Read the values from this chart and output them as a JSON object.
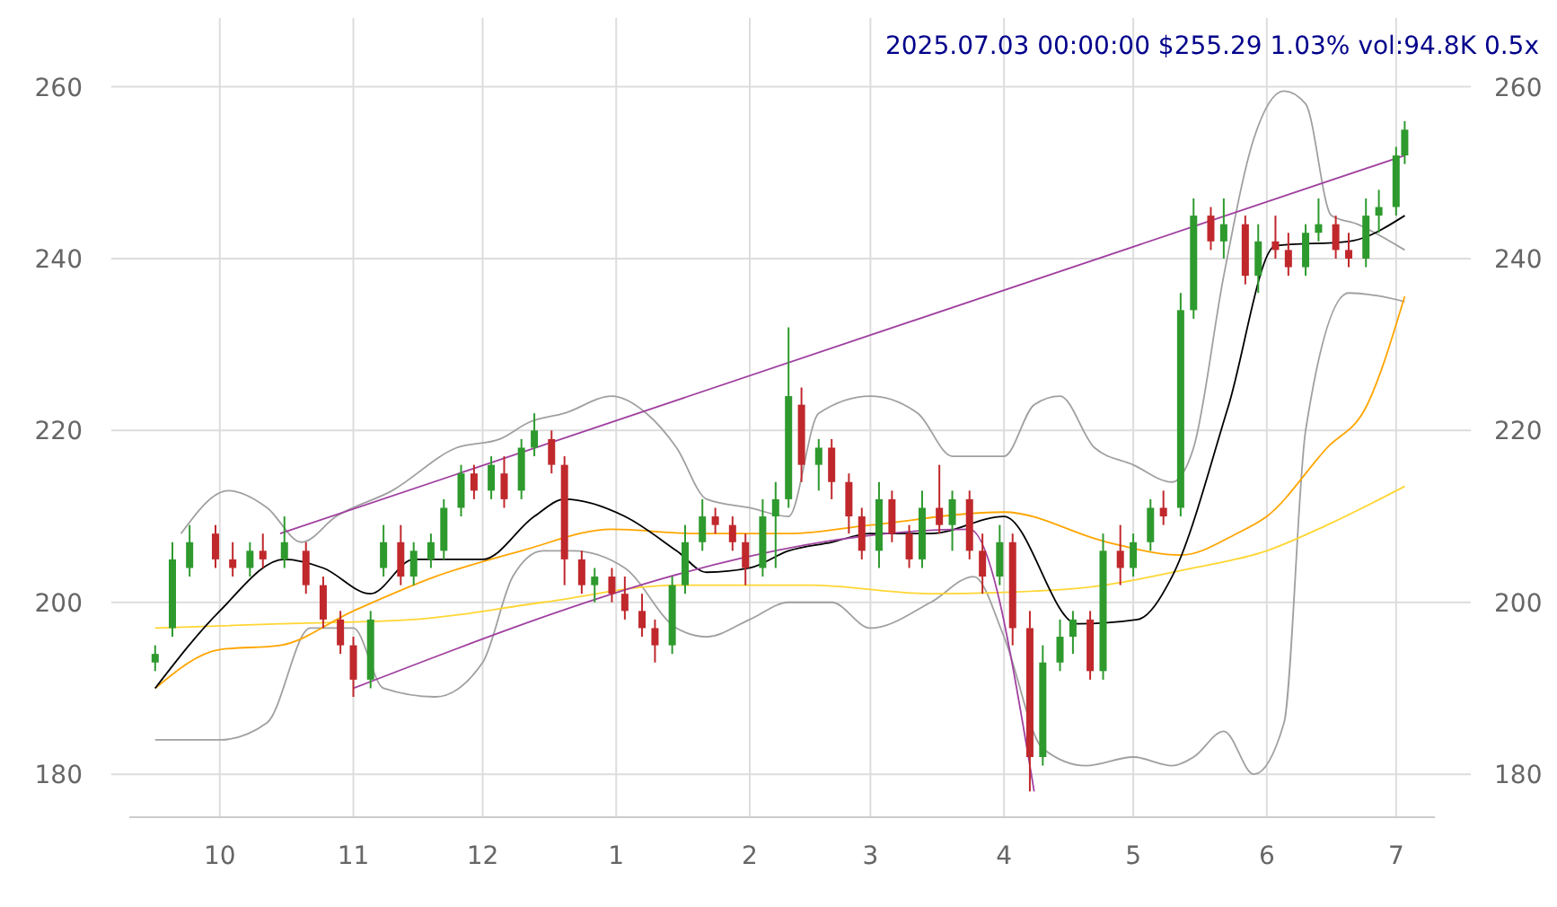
{
  "chart_data": {
    "type": "candlestick",
    "title": "2025.07.03 00:00:00 $255.29 1.03% vol:94.8K 0.5x",
    "xlim": [
      "2024-09-10",
      "2025-07-10"
    ],
    "xticks": [
      {
        "value": "2024-10-01",
        "label": "10"
      },
      {
        "value": "2024-11-01",
        "label": "11"
      },
      {
        "value": "2024-12-01",
        "label": "12"
      },
      {
        "value": "2025-01-01",
        "label": "1"
      },
      {
        "value": "2025-02-01",
        "label": "2"
      },
      {
        "value": "2025-03-01",
        "label": "3"
      },
      {
        "value": "2025-04-01",
        "label": "4"
      },
      {
        "value": "2025-05-01",
        "label": "5"
      },
      {
        "value": "2025-06-01",
        "label": "6"
      },
      {
        "value": "2025-07-01",
        "label": "7"
      }
    ],
    "ylim": [
      175,
      268
    ],
    "yticks": [
      180,
      200,
      220,
      240,
      260
    ],
    "y2lim": [
      175,
      268
    ],
    "y2ticks": [
      180,
      200,
      220,
      240,
      260
    ],
    "grid": true,
    "series": [
      {
        "type": "line",
        "color": "#a0a0a0",
        "x": [
          "2024-09-22",
          "2024-10-03",
          "2024-10-12",
          "2024-10-20",
          "2024-10-28",
          "2024-11-10",
          "2024-11-25",
          "2024-12-05",
          "2024-12-12",
          "2024-12-20",
          "2024-12-31",
          "2025-01-08",
          "2025-01-15",
          "2025-01-22",
          "2025-02-01",
          "2025-02-10",
          "2025-02-17",
          "2025-03-01",
          "2025-03-12",
          "2025-03-20",
          "2025-04-01",
          "2025-04-08",
          "2025-04-14",
          "2025-04-22",
          "2025-05-01",
          "2025-05-10",
          "2025-05-15",
          "2025-05-22",
          "2025-05-29",
          "2025-06-05",
          "2025-06-10",
          "2025-06-16",
          "2025-06-22",
          "2025-07-03"
        ],
        "values": [
          208,
          213,
          211,
          207,
          210,
          213,
          218,
          219,
          221,
          222,
          224,
          222,
          218,
          212,
          211,
          210,
          222,
          224,
          222,
          217,
          217,
          223,
          224,
          218,
          216,
          214,
          218,
          238,
          254,
          259.5,
          258,
          245,
          244,
          241
        ]
      },
      {
        "type": "line",
        "color": "#a0a0a0",
        "x": [
          "2024-09-16",
          "2024-10-01",
          "2024-10-12",
          "2024-10-22",
          "2024-11-01",
          "2024-11-08",
          "2024-11-20",
          "2024-12-01",
          "2024-12-08",
          "2024-12-15",
          "2024-12-22",
          "2025-01-03",
          "2025-01-15",
          "2025-01-22",
          "2025-02-01",
          "2025-02-10",
          "2025-02-20",
          "2025-03-01",
          "2025-03-15",
          "2025-03-25",
          "2025-04-01",
          "2025-04-10",
          "2025-04-20",
          "2025-05-01",
          "2025-05-10",
          "2025-05-15",
          "2025-05-22",
          "2025-05-29",
          "2025-06-05",
          "2025-06-10",
          "2025-06-20",
          "2025-07-03"
        ],
        "values": [
          184,
          184,
          186,
          197,
          197,
          190,
          189,
          193,
          203,
          206,
          206,
          204,
          197,
          196,
          198,
          200,
          200,
          197,
          200,
          203,
          196,
          183,
          181,
          182,
          181,
          182,
          185,
          180,
          186,
          220,
          236,
          235
        ]
      },
      {
        "type": "line",
        "color": "#ffd633",
        "x": [
          "2024-09-16",
          "2024-10-15",
          "2024-11-15",
          "2024-12-15",
          "2025-01-15",
          "2025-02-15",
          "2025-03-15",
          "2025-04-15",
          "2025-05-15",
          "2025-06-01",
          "2025-06-15",
          "2025-07-03"
        ],
        "values": [
          197,
          197.5,
          198,
          200,
          202,
          202,
          201,
          201.5,
          204,
          206,
          209,
          213.5
        ]
      },
      {
        "type": "line",
        "color": "#ffa500",
        "x": [
          "2024-09-16",
          "2024-10-01",
          "2024-10-15",
          "2024-11-01",
          "2024-11-20",
          "2024-12-10",
          "2024-12-31",
          "2025-01-20",
          "2025-02-10",
          "2025-03-01",
          "2025-04-01",
          "2025-04-25",
          "2025-05-12",
          "2025-05-25",
          "2025-06-01",
          "2025-06-15",
          "2025-06-24",
          "2025-07-03"
        ],
        "values": [
          190,
          194.5,
          195,
          199,
          203,
          206,
          208.5,
          208,
          208,
          209,
          210.5,
          207,
          205.5,
          208,
          210,
          218,
          222.7,
          235.6
        ]
      },
      {
        "type": "line",
        "color": "#000000",
        "x": [
          "2024-09-16",
          "2024-10-01",
          "2024-10-16",
          "2024-10-25",
          "2024-11-05",
          "2024-11-15",
          "2024-12-01",
          "2024-12-13",
          "2024-12-20",
          "2025-01-03",
          "2025-01-15",
          "2025-01-22",
          "2025-02-01",
          "2025-02-10",
          "2025-02-20",
          "2025-03-01",
          "2025-03-15",
          "2025-04-01",
          "2025-04-18",
          "2025-05-02",
          "2025-05-10",
          "2025-05-23",
          "2025-06-03",
          "2025-06-20",
          "2025-07-03"
        ],
        "values": [
          190,
          199,
          205,
          204,
          201,
          205,
          205,
          210,
          212,
          210,
          206,
          203.5,
          204,
          206,
          207,
          208,
          208,
          210,
          197.5,
          198,
          203,
          222.7,
          241.5,
          242,
          245
        ]
      },
      {
        "type": "line",
        "color": "#a040a0",
        "x": [
          "2024-10-15",
          "2025-07-03"
        ],
        "values": [
          208,
          252
        ]
      },
      {
        "type": "line",
        "color": "#a040a0",
        "x": [
          "2024-11-01",
          "2025-03-24",
          "2025-04-08"
        ],
        "values": [
          190,
          208.5,
          178
        ]
      },
      {
        "x": [
          "2024-09-16",
          "2024-09-20",
          "2024-09-24",
          "2024-09-30",
          "2024-10-04",
          "2024-10-08",
          "2024-10-11",
          "2024-10-16",
          "2024-10-21",
          "2024-10-25",
          "2024-10-29",
          "2024-11-01",
          "2024-11-05",
          "2024-11-08",
          "2024-11-12",
          "2024-11-15",
          "2024-11-19",
          "2024-11-22",
          "2024-11-26",
          "2024-11-29",
          "2024-12-03",
          "2024-12-06",
          "2024-12-10",
          "2024-12-13",
          "2024-12-17",
          "2024-12-20",
          "2024-12-24",
          "2024-12-27",
          "2024-12-31",
          "2025-01-03",
          "2025-01-07",
          "2025-01-10",
          "2025-01-14",
          "2025-01-17",
          "2025-01-21",
          "2025-01-24",
          "2025-01-28",
          "2025-01-31",
          "2025-02-04",
          "2025-02-07",
          "2025-02-10",
          "2025-02-13",
          "2025-02-17",
          "2025-02-20",
          "2025-02-24",
          "2025-02-27",
          "2025-03-03",
          "2025-03-06",
          "2025-03-10",
          "2025-03-13",
          "2025-03-17",
          "2025-03-20",
          "2025-03-24",
          "2025-03-27",
          "2025-03-31",
          "2025-04-03",
          "2025-04-07",
          "2025-04-10",
          "2025-04-14",
          "2025-04-17",
          "2025-04-21",
          "2025-04-24",
          "2025-04-28",
          "2025-05-01",
          "2025-05-05",
          "2025-05-08",
          "2025-05-12",
          "2025-05-15",
          "2025-05-19",
          "2025-05-22",
          "2025-05-27",
          "2025-05-30",
          "2025-06-03",
          "2025-06-06",
          "2025-06-10",
          "2025-06-13",
          "2025-06-17",
          "2025-06-20",
          "2025-06-24",
          "2025-06-27",
          "2025-07-01",
          "2025-07-03"
        ],
        "ohlc": [
          [
            193,
            195,
            192,
            194
          ],
          [
            197,
            207,
            196,
            205
          ],
          [
            204,
            209,
            203,
            207
          ],
          [
            208,
            209,
            204,
            205
          ],
          [
            205,
            207,
            203,
            204
          ],
          [
            204,
            207,
            203,
            206
          ],
          [
            206,
            208,
            204,
            205
          ],
          [
            205,
            210,
            204,
            207
          ],
          [
            206,
            207,
            201,
            202
          ],
          [
            202,
            203,
            197,
            198
          ],
          [
            198,
            199,
            194,
            195
          ],
          [
            195,
            196,
            189,
            191
          ],
          [
            191,
            199,
            190,
            198
          ],
          [
            204,
            209,
            203,
            207
          ],
          [
            207,
            209,
            202,
            203
          ],
          [
            203,
            207,
            202,
            206
          ],
          [
            205,
            208,
            204,
            207
          ],
          [
            206,
            212,
            205,
            211
          ],
          [
            211,
            216,
            210,
            215
          ],
          [
            215,
            216,
            212,
            213
          ],
          [
            213,
            217,
            212,
            216
          ],
          [
            215,
            217,
            211,
            212
          ],
          [
            213,
            219,
            212,
            218
          ],
          [
            218,
            222,
            217,
            220
          ],
          [
            219,
            220,
            215,
            216
          ],
          [
            216,
            217,
            202,
            205
          ],
          [
            205,
            206,
            201,
            202
          ],
          [
            202,
            204,
            200,
            203
          ],
          [
            203,
            204,
            200,
            201
          ],
          [
            201,
            203,
            198,
            199
          ],
          [
            199,
            201,
            196,
            197
          ],
          [
            197,
            198,
            193,
            195
          ],
          [
            195,
            203,
            194,
            202
          ],
          [
            202,
            209,
            201,
            207
          ],
          [
            207,
            212,
            206,
            210
          ],
          [
            210,
            211,
            208,
            209
          ],
          [
            209,
            210,
            206,
            207
          ],
          [
            207,
            208,
            202,
            204
          ],
          [
            204,
            212,
            203,
            210
          ],
          [
            210,
            214,
            204,
            212
          ],
          [
            212,
            232,
            211,
            224
          ],
          [
            223,
            225,
            214,
            216
          ],
          [
            216,
            219,
            213,
            218
          ],
          [
            218,
            219,
            212,
            214
          ],
          [
            214,
            215,
            208,
            210
          ],
          [
            210,
            211,
            205,
            206
          ],
          [
            206,
            214,
            204,
            212
          ],
          [
            212,
            213,
            207,
            208
          ],
          [
            208,
            209,
            204,
            205
          ],
          [
            205,
            213,
            204,
            211
          ],
          [
            211,
            216,
            208,
            209
          ],
          [
            209,
            213,
            206,
            212
          ],
          [
            212,
            213,
            205,
            206
          ],
          [
            206,
            208,
            201,
            203
          ],
          [
            203,
            209,
            202,
            207
          ],
          [
            207,
            208,
            195,
            197
          ],
          [
            197,
            199,
            178,
            182
          ],
          [
            182,
            195,
            181,
            193
          ],
          [
            193,
            198,
            192,
            196
          ],
          [
            196,
            199,
            194,
            198
          ],
          [
            198,
            199,
            191,
            192
          ],
          [
            192,
            208,
            191,
            206
          ],
          [
            206,
            209,
            202,
            204
          ],
          [
            204,
            208,
            203,
            207
          ],
          [
            207,
            212,
            206,
            211
          ],
          [
            211,
            213,
            209,
            210
          ],
          [
            211,
            236,
            210,
            234
          ],
          [
            234,
            247,
            233,
            245
          ],
          [
            245,
            246,
            241,
            242
          ],
          [
            242,
            247,
            240,
            244
          ],
          [
            244,
            245,
            237,
            238
          ],
          [
            238,
            244,
            236,
            242
          ],
          [
            242,
            245,
            240,
            241
          ],
          [
            241,
            243,
            238,
            239
          ],
          [
            239,
            244,
            238,
            243
          ],
          [
            243,
            247,
            242,
            244
          ],
          [
            244,
            245,
            240,
            241
          ],
          [
            241,
            243,
            239,
            240
          ],
          [
            240,
            247,
            239,
            245
          ],
          [
            245,
            248,
            243,
            246
          ],
          [
            246,
            253,
            245,
            252
          ],
          [
            252,
            256,
            251,
            255
          ]
        ],
        "colors": [
          "#2e9a2e",
          "#2e9a2e",
          "#2e9a2e",
          "#c0282c",
          "#c0282c",
          "#2e9a2e",
          "#c0282c",
          "#2e9a2e",
          "#c0282c",
          "#c0282c",
          "#c0282c",
          "#c0282c",
          "#2e9a2e",
          "#2e9a2e",
          "#c0282c",
          "#2e9a2e",
          "#2e9a2e",
          "#2e9a2e",
          "#2e9a2e",
          "#c0282c",
          "#2e9a2e",
          "#c0282c",
          "#2e9a2e",
          "#2e9a2e",
          "#c0282c",
          "#c0282c",
          "#c0282c",
          "#2e9a2e",
          "#c0282c",
          "#c0282c",
          "#c0282c",
          "#c0282c",
          "#2e9a2e",
          "#2e9a2e",
          "#2e9a2e",
          "#c0282c",
          "#c0282c",
          "#c0282c",
          "#2e9a2e",
          "#2e9a2e",
          "#2e9a2e",
          "#c0282c",
          "#2e9a2e",
          "#c0282c",
          "#c0282c",
          "#c0282c",
          "#2e9a2e",
          "#c0282c",
          "#c0282c",
          "#2e9a2e",
          "#c0282c",
          "#2e9a2e",
          "#c0282c",
          "#c0282c",
          "#2e9a2e",
          "#c0282c",
          "#c0282c",
          "#2e9a2e",
          "#2e9a2e",
          "#2e9a2e",
          "#c0282c",
          "#2e9a2e",
          "#c0282c",
          "#2e9a2e",
          "#2e9a2e",
          "#c0282c",
          "#2e9a2e",
          "#2e9a2e",
          "#c0282c",
          "#2e9a2e",
          "#c0282c",
          "#2e9a2e",
          "#c0282c",
          "#c0282c",
          "#2e9a2e",
          "#2e9a2e",
          "#c0282c",
          "#c0282c",
          "#2e9a2e",
          "#2e9a2e",
          "#2e9a2e",
          "#2e9a2e"
        ]
      }
    ]
  }
}
